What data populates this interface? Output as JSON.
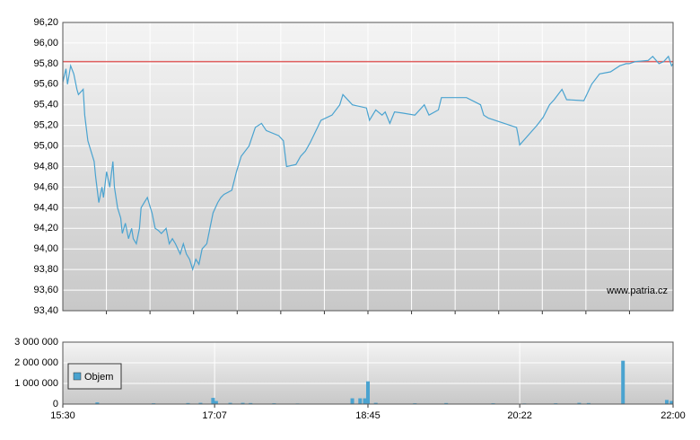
{
  "chart_data": [
    {
      "type": "line",
      "x": [
        "15:30",
        "15:32",
        "15:33",
        "15:35",
        "15:37",
        "15:39",
        "15:40",
        "15:43",
        "15:44",
        "15:46",
        "15:48",
        "15:50",
        "15:51",
        "15:53",
        "15:55",
        "15:56",
        "15:58",
        "16:00",
        "16:02",
        "16:03",
        "16:05",
        "16:07",
        "16:08",
        "16:10",
        "16:12",
        "16:14",
        "16:15",
        "16:17",
        "16:19",
        "16:20",
        "16:22",
        "16:24",
        "16:26",
        "16:27",
        "16:29",
        "16:31",
        "16:33",
        "16:36",
        "16:38",
        "16:40",
        "16:42",
        "16:45",
        "16:47",
        "16:49",
        "16:51",
        "16:53",
        "16:55",
        "16:57",
        "16:59",
        "17:02",
        "17:04",
        "17:06",
        "17:09",
        "17:11",
        "17:13",
        "17:18",
        "17:21",
        "17:24",
        "17:29",
        "17:33",
        "17:37",
        "17:40",
        "17:48",
        "17:51",
        "17:53",
        "17:59",
        "18:02",
        "18:05",
        "18:08",
        "18:15",
        "18:22",
        "18:27",
        "18:29",
        "18:35",
        "18:44",
        "18:46",
        "18:50",
        "18:54",
        "18:56",
        "18:59",
        "19:02",
        "19:07",
        "19:15",
        "19:21",
        "19:24",
        "19:30",
        "19:32",
        "19:48",
        "19:57",
        "19:59",
        "20:02",
        "20:20",
        "20:21",
        "20:22",
        "20:33",
        "20:37",
        "20:41",
        "20:44",
        "20:49",
        "20:52",
        "21:03",
        "21:08",
        "21:13",
        "21:20",
        "21:26",
        "21:30",
        "21:32",
        "21:36",
        "21:44",
        "21:47",
        "21:51",
        "21:54",
        "21:57",
        "21:59",
        "22:00"
      ],
      "series": [
        {
          "color": "#4aa3d0",
          "values": [
            95.62,
            95.75,
            95.6,
            95.78,
            95.7,
            95.55,
            95.5,
            95.55,
            95.3,
            95.05,
            94.95,
            94.85,
            94.7,
            94.45,
            94.6,
            94.5,
            94.75,
            94.6,
            94.85,
            94.6,
            94.4,
            94.3,
            94.15,
            94.25,
            94.1,
            94.2,
            94.1,
            94.05,
            94.2,
            94.4,
            94.45,
            94.5,
            94.4,
            94.35,
            94.2,
            94.18,
            94.15,
            94.2,
            94.05,
            94.1,
            94.05,
            93.95,
            94.05,
            93.95,
            93.9,
            93.8,
            93.9,
            93.85,
            94.0,
            94.05,
            94.2,
            94.35,
            94.45,
            94.5,
            94.53,
            94.57,
            94.75,
            94.9,
            95.0,
            95.18,
            95.22,
            95.15,
            95.1,
            95.05,
            94.8,
            94.82,
            94.9,
            94.95,
            95.03,
            95.25,
            95.3,
            95.4,
            95.5,
            95.4,
            95.37,
            95.25,
            95.35,
            95.3,
            95.33,
            95.22,
            95.33,
            95.32,
            95.3,
            95.4,
            95.3,
            95.35,
            95.47,
            95.47,
            95.4,
            95.3,
            95.27,
            95.18,
            95.1,
            95.01,
            95.2,
            95.28,
            95.4,
            95.45,
            95.55,
            95.45,
            95.44,
            95.6,
            95.7,
            95.72,
            95.78,
            95.8,
            95.8,
            95.82,
            95.83,
            95.87,
            95.8,
            95.82,
            95.87,
            95.78,
            95.8
          ]
        }
      ],
      "reference_line": 95.82,
      "reference_color": "#e06060",
      "xlim": [
        "15:30",
        "22:00"
      ],
      "ylim": [
        93.4,
        96.2
      ],
      "yticks": [
        {
          "value": 93.4,
          "label": "93,40"
        },
        {
          "value": 93.6,
          "label": "93,60"
        },
        {
          "value": 93.8,
          "label": "93,80"
        },
        {
          "value": 94.0,
          "label": "94,00"
        },
        {
          "value": 94.2,
          "label": "94,20"
        },
        {
          "value": 94.4,
          "label": "94,40"
        },
        {
          "value": 94.6,
          "label": "94,60"
        },
        {
          "value": 94.8,
          "label": "94,80"
        },
        {
          "value": 95.0,
          "label": "95,00"
        },
        {
          "value": 95.2,
          "label": "95,20"
        },
        {
          "value": 95.4,
          "label": "95,40"
        },
        {
          "value": 95.6,
          "label": "95,60"
        },
        {
          "value": 95.8,
          "label": "95,80"
        },
        {
          "value": 96.0,
          "label": "96,00"
        },
        {
          "value": 96.2,
          "label": "96,20"
        }
      ],
      "grid": true,
      "annotation": "www.patria.cz"
    },
    {
      "type": "bar",
      "x": [
        "15:52",
        "16:28",
        "16:50",
        "16:58",
        "17:06",
        "17:08",
        "17:17",
        "17:25",
        "17:30",
        "17:45",
        "18:00",
        "18:35",
        "18:40",
        "18:43",
        "18:45",
        "18:50",
        "19:15",
        "19:35",
        "20:05",
        "20:25",
        "20:45",
        "21:00",
        "21:06",
        "21:28",
        "21:56",
        "21:59"
      ],
      "series": [
        {
          "name": "Objem",
          "color": "#4aa3d0",
          "values": [
            80000,
            40000,
            50000,
            60000,
            300000,
            150000,
            60000,
            60000,
            50000,
            40000,
            30000,
            280000,
            280000,
            280000,
            1100000,
            60000,
            40000,
            50000,
            40000,
            30000,
            40000,
            60000,
            50000,
            2100000,
            200000,
            150000
          ]
        }
      ],
      "xlim": [
        "15:30",
        "22:00"
      ],
      "xticks": [
        "15:30",
        "17:07",
        "18:45",
        "20:22",
        "22:00"
      ],
      "ylim": [
        0,
        3000000
      ],
      "yticks": [
        {
          "value": 0,
          "label": "0"
        },
        {
          "value": 1000000,
          "label": "1 000 000"
        },
        {
          "value": 2000000,
          "label": "2 000 000"
        },
        {
          "value": 3000000,
          "label": "3 000 000"
        }
      ],
      "grid": true,
      "legend": "upper-left"
    }
  ]
}
